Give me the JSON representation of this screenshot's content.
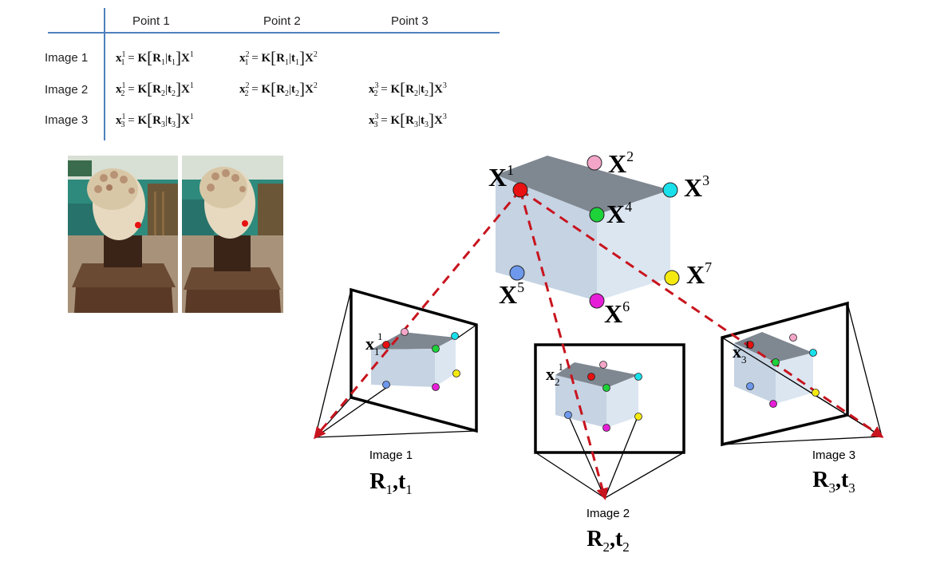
{
  "table": {
    "columns": [
      "Point 1",
      "Point 2",
      "Point 3"
    ],
    "rows": [
      {
        "label": "Image 1",
        "cells": [
          {
            "lhs": "x",
            "sup": "1",
            "sub": "1",
            "R": "1",
            "t": "1",
            "X": "1"
          },
          {
            "lhs": "x",
            "sup": "2",
            "sub": "1",
            "R": "1",
            "t": "1",
            "X": "2"
          },
          null
        ]
      },
      {
        "label": "Image 2",
        "cells": [
          {
            "lhs": "x",
            "sup": "1",
            "sub": "2",
            "R": "2",
            "t": "2",
            "X": "1"
          },
          {
            "lhs": "x",
            "sup": "2",
            "sub": "2",
            "R": "2",
            "t": "2",
            "X": "2"
          },
          {
            "lhs": "x",
            "sup": "3",
            "sub": "2",
            "R": "2",
            "t": "2",
            "X": "3"
          }
        ]
      },
      {
        "label": "Image 3",
        "cells": [
          {
            "lhs": "x",
            "sup": "1",
            "sub": "3",
            "R": "3",
            "t": "3",
            "X": "1"
          },
          null,
          {
            "lhs": "x",
            "sup": "3",
            "sub": "3",
            "R": "3",
            "t": "3",
            "X": "3"
          }
        ]
      }
    ]
  },
  "world_points": [
    {
      "name": "X",
      "sup": "1",
      "color": "#e81010"
    },
    {
      "name": "X",
      "sup": "2",
      "color": "#f4a6c8"
    },
    {
      "name": "X",
      "sup": "3",
      "color": "#19e0ea"
    },
    {
      "name": "X",
      "sup": "4",
      "color": "#1ed23a"
    },
    {
      "name": "X",
      "sup": "5",
      "color": "#6d98ec"
    },
    {
      "name": "X",
      "sup": "6",
      "color": "#e61ed7"
    },
    {
      "name": "X",
      "sup": "7",
      "color": "#f5ea10"
    }
  ],
  "cameras": [
    {
      "label": "Image 1",
      "R": "R",
      "R_sub": "1",
      "t": "t",
      "t_sub": "1",
      "proj_label": "x",
      "proj_sub": "1",
      "proj_sup": "1"
    },
    {
      "label": "Image 2",
      "R": "R",
      "R_sub": "2",
      "t": "t",
      "t_sub": "2",
      "proj_label": "x",
      "proj_sub": "2",
      "proj_sup": "1"
    },
    {
      "label": "Image 3",
      "R": "R",
      "R_sub": "3",
      "t": "t",
      "t_sub": "3",
      "proj_label": "x",
      "proj_sub": "3",
      "proj_sup": "1"
    }
  ],
  "colors": {
    "ray": "#c8141e",
    "cube_top": "#7f8791",
    "cube_front": "#c5d3e3",
    "cube_side": "#dce6f1",
    "table_rule": "#4f81bd"
  },
  "photos": [
    {
      "name": "statue-photo-left"
    },
    {
      "name": "statue-photo-right"
    }
  ]
}
